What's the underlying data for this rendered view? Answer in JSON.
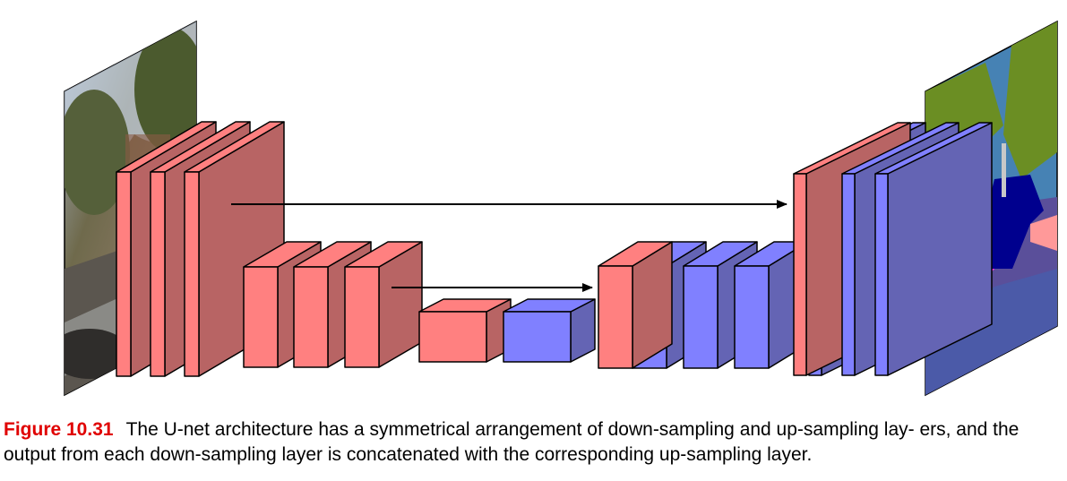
{
  "colors": {
    "encoder_front": "#ff8080",
    "encoder_side": "#b86464",
    "encoder_top": "#ff8080",
    "decoder_front": "#8080ff",
    "decoder_side": "#6464b4",
    "decoder_top": "#8080ff",
    "edge": "#000000",
    "arrow": "#000000"
  },
  "images": {
    "input": "street-scene-photo",
    "output": "semantic-segmentation-map",
    "segmentation_colors": {
      "sky": "#4682b4",
      "vegetation": "#6b8e23",
      "road": "#5a4f9a",
      "sidewalk": "#f432e6",
      "car": "#00008e",
      "building": "#464646",
      "pole": "#c8c8c8",
      "sign": "#dcdc00",
      "person": "#dc143c"
    }
  },
  "caption": {
    "label": "Figure 10.31",
    "text": "The U-net architecture has a symmetrical arrangement of down-sampling and up-sampling lay- ers, and the output from each down-sampling layer is concatenated with the corresponding up-sampling layer."
  }
}
